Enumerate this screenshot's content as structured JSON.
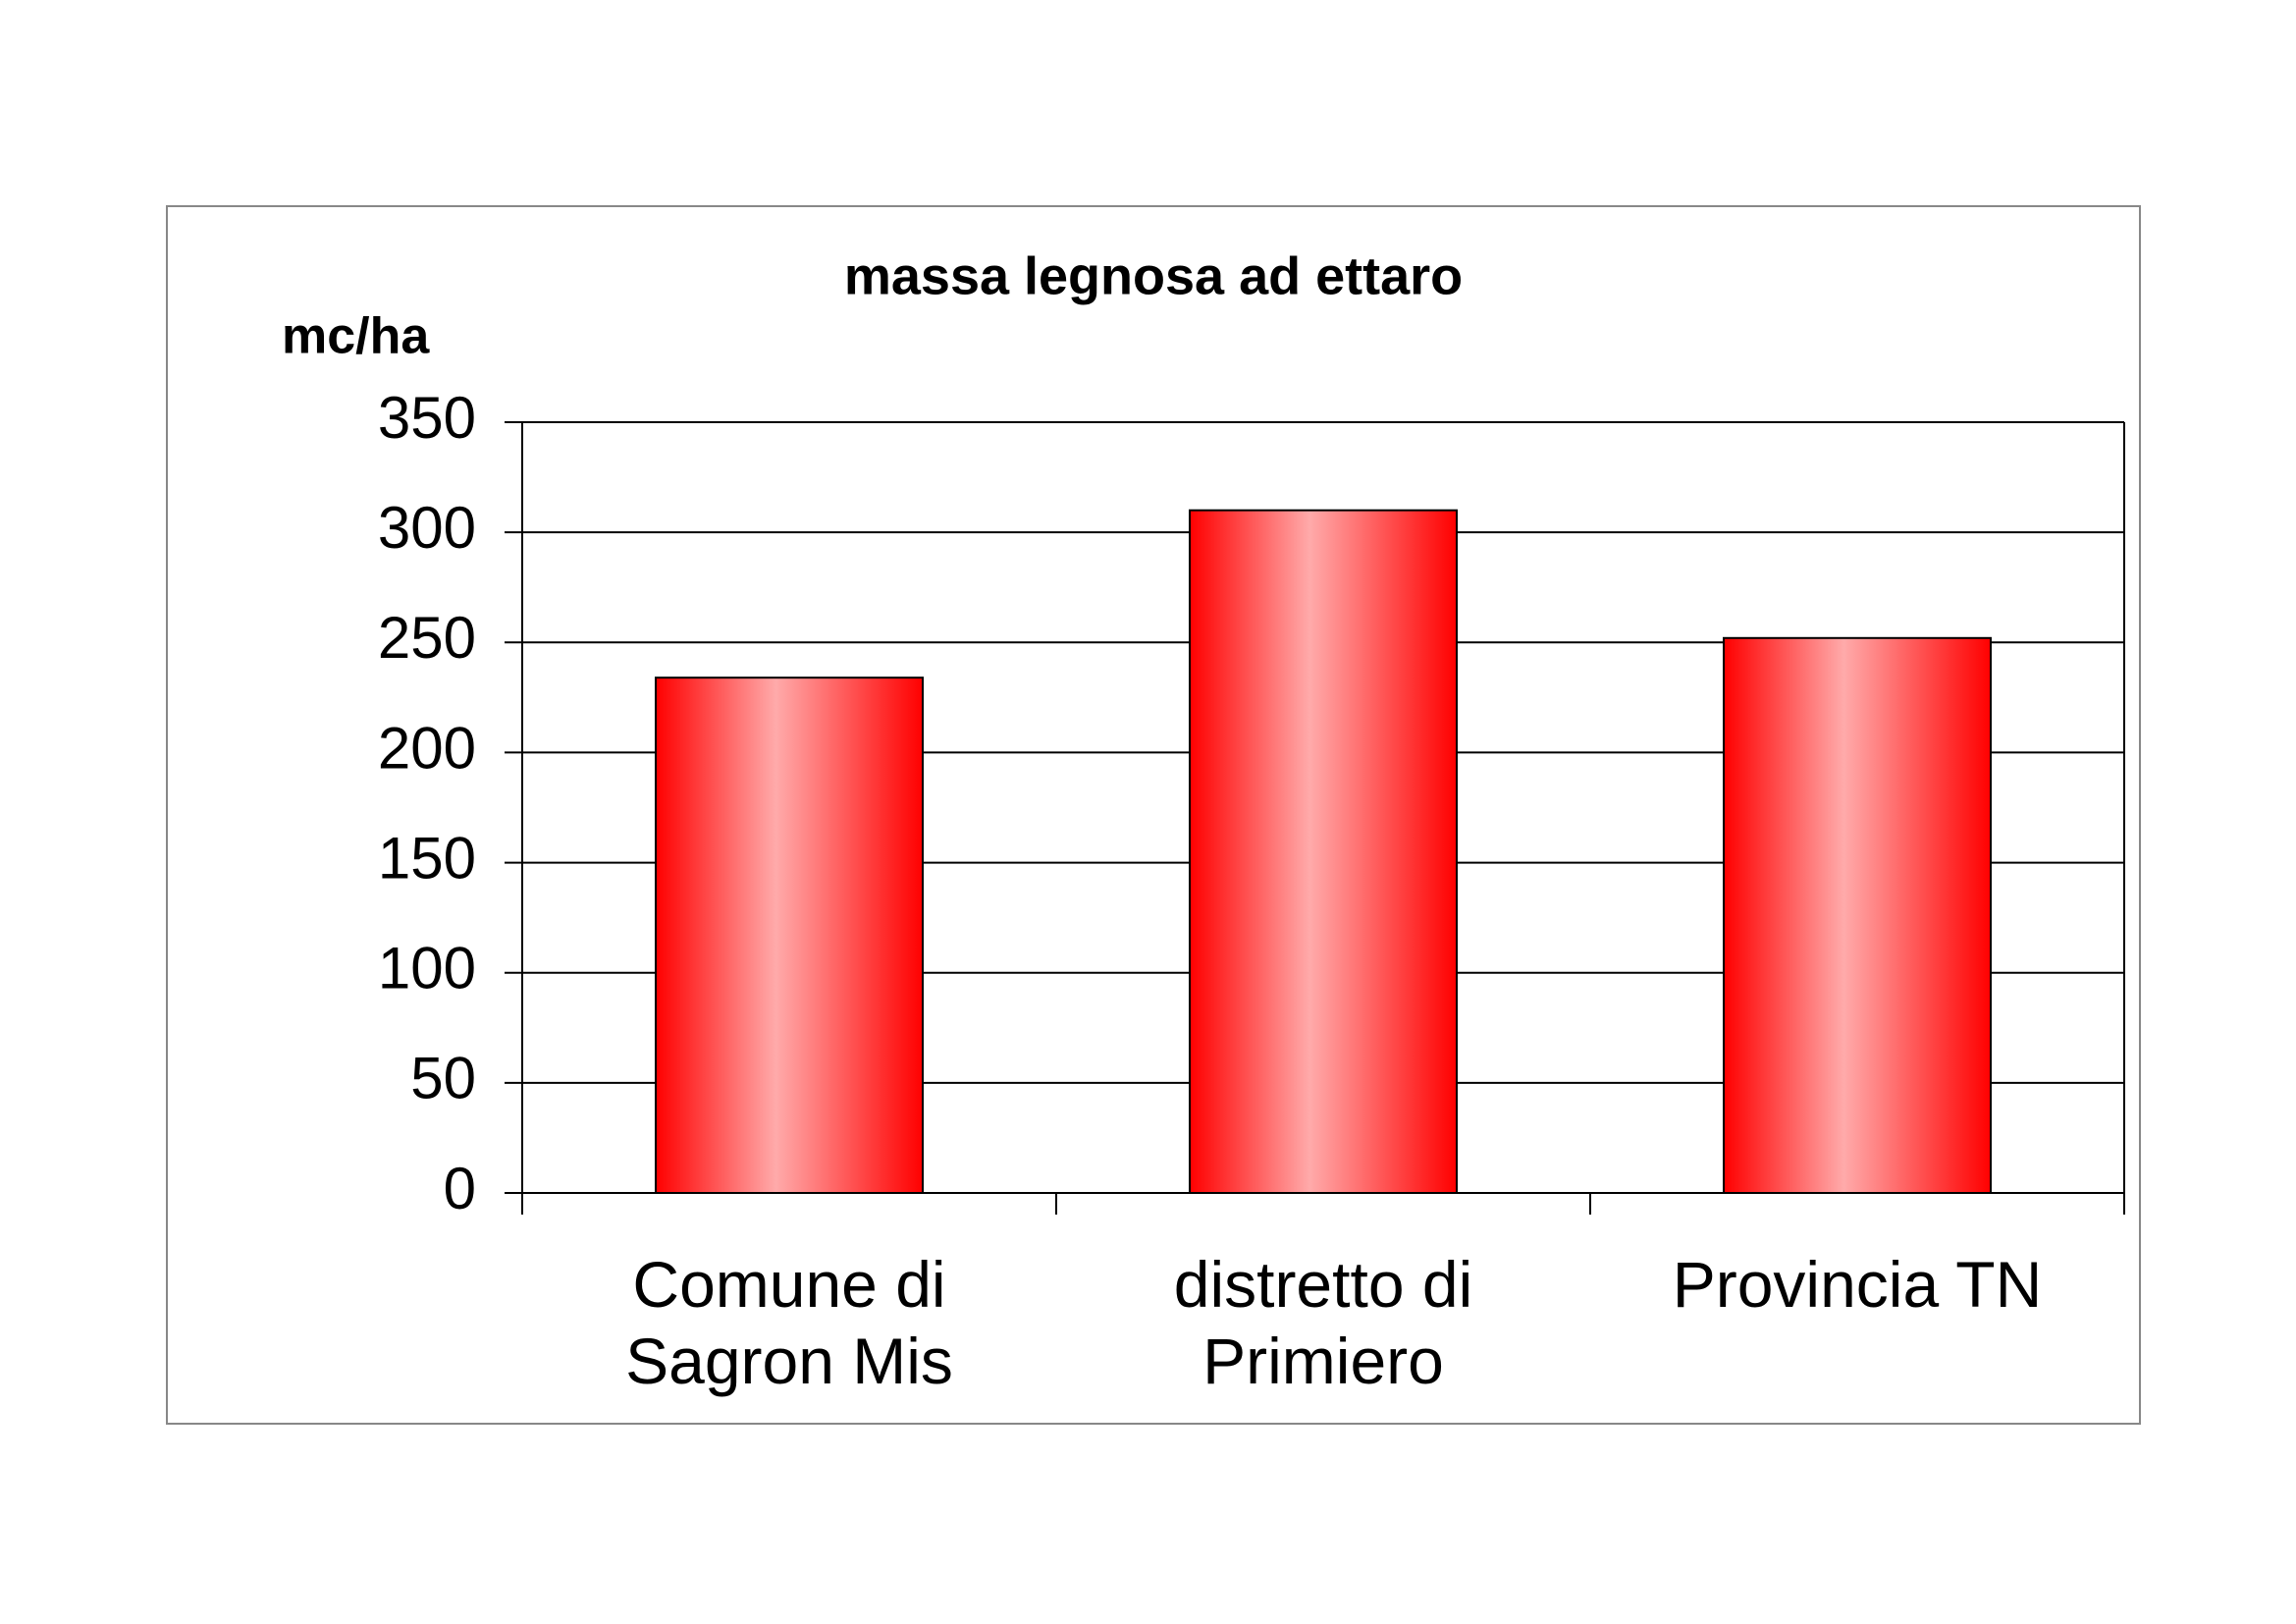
{
  "chart_data": {
    "type": "bar",
    "title": "massa legnosa ad ettaro",
    "y_label": "mc/ha",
    "categories": [
      "Comune di Sagron Mis",
      "distretto di Primiero",
      "Provincia TN"
    ],
    "values": [
      234,
      310,
      252
    ],
    "color": "#ff0000",
    "ylim": [
      0,
      350
    ],
    "yticks": [
      0,
      50,
      100,
      150,
      200,
      250,
      300,
      350
    ],
    "grid": true
  }
}
